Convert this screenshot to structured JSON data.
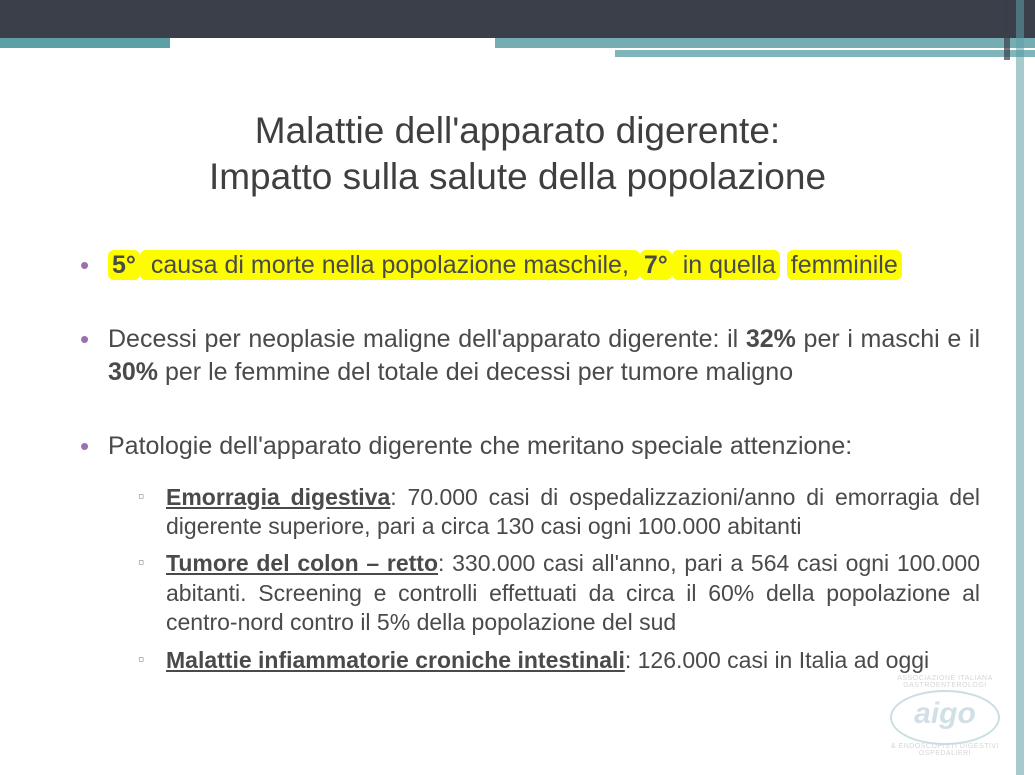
{
  "colors": {
    "header": "#3a3f4a",
    "teal": "#5d9fa6",
    "bullet": "#9c6fb0",
    "highlight": "#fdfd00",
    "text": "#4a4a4a"
  },
  "title_line1": "Malattie dell'apparato digerente:",
  "title_line2": "Impatto sulla salute della popolazione",
  "b1": {
    "hl1": "5°",
    "t1": " causa di morte nella popolazione maschile, ",
    "hl2": "7°",
    "t2": " in quella",
    "hl3": "femminile"
  },
  "b2": {
    "t1": "Decessi per neoplasie maligne dell'apparato digerente: il ",
    "p1": "32%",
    "t2": " per i maschi e il ",
    "p2": "30%",
    "t3": " per le femmine del totale dei decessi per tumore maligno"
  },
  "b3": {
    "lead": "Patologie dell'apparato digerente che meritano speciale attenzione:",
    "s1_label": "Emorragia digestiva",
    "s1_text": ": 70.000 casi di ospedalizzazioni/anno di emorragia del digerente superiore, pari a circa 130 casi ogni 100.000 abitanti",
    "s2_label": "Tumore del colon – retto",
    "s2_text": ": 330.000 casi all'anno, pari a 564 casi ogni 100.000 abitanti. Screening e controlli effettuati da circa il 60% della popolazione al centro-nord contro il 5% della popolazione del sud",
    "s3_label": "Malattie infiammatorie croniche intestinali",
    "s3_text": ": 126.000 casi in Italia ad oggi"
  },
  "logo": {
    "text": "aigo",
    "arc_top": "ASSOCIAZIONE ITALIANA GASTROENTEROLOGI",
    "arc_bot": "& ENDOSCOPISTI DIGESTIVI OSPEDALIERI"
  }
}
